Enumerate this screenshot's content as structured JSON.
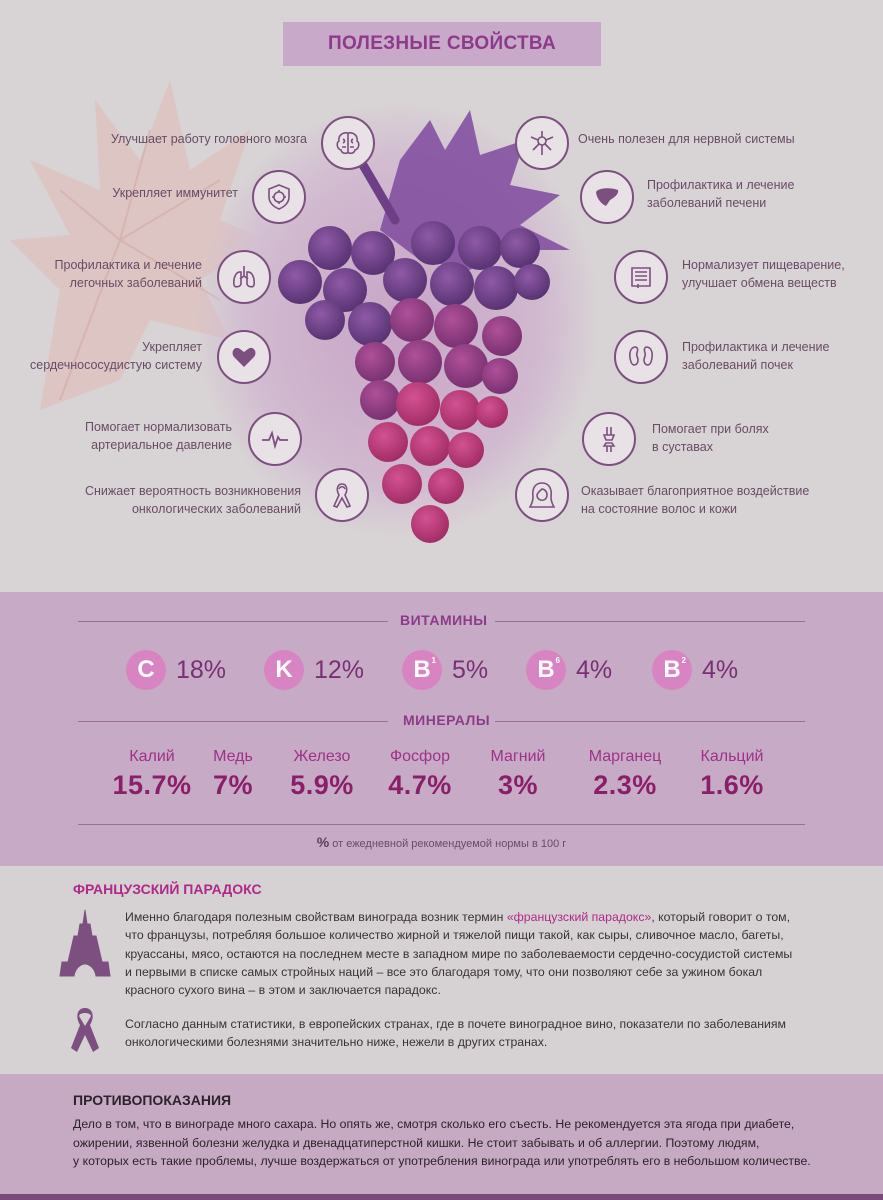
{
  "title": "ПОЛЕЗНЫЕ СВОЙСТВА",
  "benefits_left": [
    {
      "text": "Улучшает работу головного мозга",
      "icon": "brain-icon"
    },
    {
      "text": "Укрепляет иммунитет",
      "icon": "virus-shield-icon"
    },
    {
      "text": "Профилактика и лечение\nлегочных заболеваний",
      "icon": "lungs-icon"
    },
    {
      "text": "Укрепляет\nсердечнососудистую систему",
      "icon": "heart-icon"
    },
    {
      "text": "Помогает нормализовать\nартериальное давление",
      "icon": "pulse-icon"
    },
    {
      "text": "Снижает вероятность возникновения\nонкологических заболеваний",
      "icon": "ribbon-icon"
    }
  ],
  "benefits_right": [
    {
      "text": "Очень полезен для нервной системы",
      "icon": "neuron-icon"
    },
    {
      "text": "Профилактика и лечение\nзаболеваний печени",
      "icon": "liver-icon"
    },
    {
      "text": "Нормализует пищеварение,\nулучшает обмена веществ",
      "icon": "intestine-icon"
    },
    {
      "text": "Профилактика и лечение\nзаболеваний почек",
      "icon": "kidneys-icon"
    },
    {
      "text": "Помогает при болях\nв суставах",
      "icon": "joint-icon"
    },
    {
      "text": "Оказывает благоприятное воздействие\nна состояние волос и кожи",
      "icon": "woman-face-icon"
    }
  ],
  "vitamins_heading": "ВИТАМИНЫ",
  "vitamins": [
    {
      "letter": "C",
      "sub": "",
      "value": "18%"
    },
    {
      "letter": "K",
      "sub": "",
      "value": "12%"
    },
    {
      "letter": "B",
      "sub": "1",
      "value": "5%"
    },
    {
      "letter": "B",
      "sub": "6",
      "value": "4%"
    },
    {
      "letter": "B",
      "sub": "2",
      "value": "4%"
    }
  ],
  "minerals_heading": "МИНЕРАЛЫ",
  "minerals": [
    {
      "name": "Калий",
      "value": "15.7%"
    },
    {
      "name": "Медь",
      "value": "7%"
    },
    {
      "name": "Железо",
      "value": "5.9%"
    },
    {
      "name": "Фосфор",
      "value": "4.7%"
    },
    {
      "name": "Магний",
      "value": "3%"
    },
    {
      "name": "Марганец",
      "value": "2.3%"
    },
    {
      "name": "Кальций",
      "value": "1.6%"
    }
  ],
  "note_symbol": "%",
  "note_text": "от ежедневной рекомендуемой нормы в 100 г",
  "paradox": {
    "title": "ФРАНЦУЗСКИЙ ПАРАДОКС",
    "p1_before": "Именно благодаря полезным свойствам винограда возник термин ",
    "p1_highlight": "«французский парадокс»",
    "p1_after": ", который говорит о том,",
    "p1_lines": [
      "что французы, потребляя большое количество жирной и тяжелой пищи такой, как сыры, сливочное масло, багеты,",
      "круассаны, мясо, остаются на последнем месте в западном мире по заболеваемости сердечно-сосудистой системы",
      "и первыми в списке самых стройных наций –   все это благодаря тому, что они позволяют себе за ужином бокал",
      "красного сухого вина  –  в этом и заключается парадокс."
    ],
    "p2_lines": [
      "Согласно данным статистики, в европейских странах, где в почете виноградное вино, показатели по заболеваниям",
      "онкологическими болезнями значительно ниже, нежели в других странах."
    ],
    "icon1": "eiffel-tower-icon",
    "icon2": "ribbon-icon"
  },
  "contra": {
    "title": "ПРОТИВОПОКАЗАНИЯ",
    "lines": [
      "Дело в том, что в винограде много сахара. Но опять же, смотря сколько его съесть. Не рекомендуется эта ягода при диабете,",
      "ожирении, язвенной болезни желудка и двенадцатиперстной кишки. Не стоит забывать и об аллергии. Поэтому людям,",
      "у которых есть такие проблемы, лучше воздержаться от употребления винограда или употреблять его в небольшом количестве."
    ]
  },
  "colors": {
    "accent": "#8e3a8b",
    "title_band": "#c8a9c9",
    "mid_bg": "#c7abc6",
    "badge": "#d883c2",
    "mineral_value": "#8b1e69"
  }
}
